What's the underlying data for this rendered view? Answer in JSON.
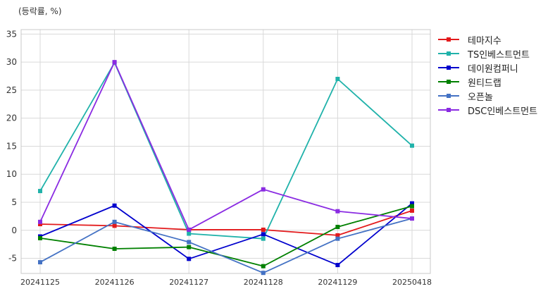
{
  "chart_data": {
    "type": "line",
    "unit_label": "(등락률, %)",
    "categories": [
      "20241125",
      "20241126",
      "20241127",
      "20241128",
      "20241129",
      "20250418"
    ],
    "ylim": [
      -7.7,
      35.8
    ],
    "yticks": [
      -5,
      0,
      5,
      10,
      15,
      20,
      25,
      30,
      35
    ],
    "grid": true,
    "legend_position": "right",
    "series": [
      {
        "name": "테마지수",
        "color": "#e31a1c",
        "values": [
          1.1,
          0.8,
          0.1,
          0.1,
          -0.9,
          3.5
        ]
      },
      {
        "name": "TS인베스트먼트",
        "color": "#20b2aa",
        "values": [
          7.0,
          29.9,
          -0.6,
          -1.5,
          27.0,
          15.1
        ]
      },
      {
        "name": "데이원컴퍼니",
        "color": "#0000cd",
        "values": [
          -1.1,
          4.4,
          -5.1,
          -0.7,
          -6.2,
          4.8
        ]
      },
      {
        "name": "원티드랩",
        "color": "#008000",
        "values": [
          -1.4,
          -3.3,
          -3.0,
          -6.4,
          0.6,
          4.3
        ]
      },
      {
        "name": "오픈놀",
        "color": "#4472c4",
        "values": [
          -5.7,
          1.5,
          -2.1,
          -7.6,
          -1.5,
          2.1
        ]
      },
      {
        "name": "DSC인베스트먼트",
        "color": "#8a2be2",
        "values": [
          1.5,
          30.0,
          0.1,
          7.3,
          3.4,
          2.1
        ]
      }
    ]
  }
}
